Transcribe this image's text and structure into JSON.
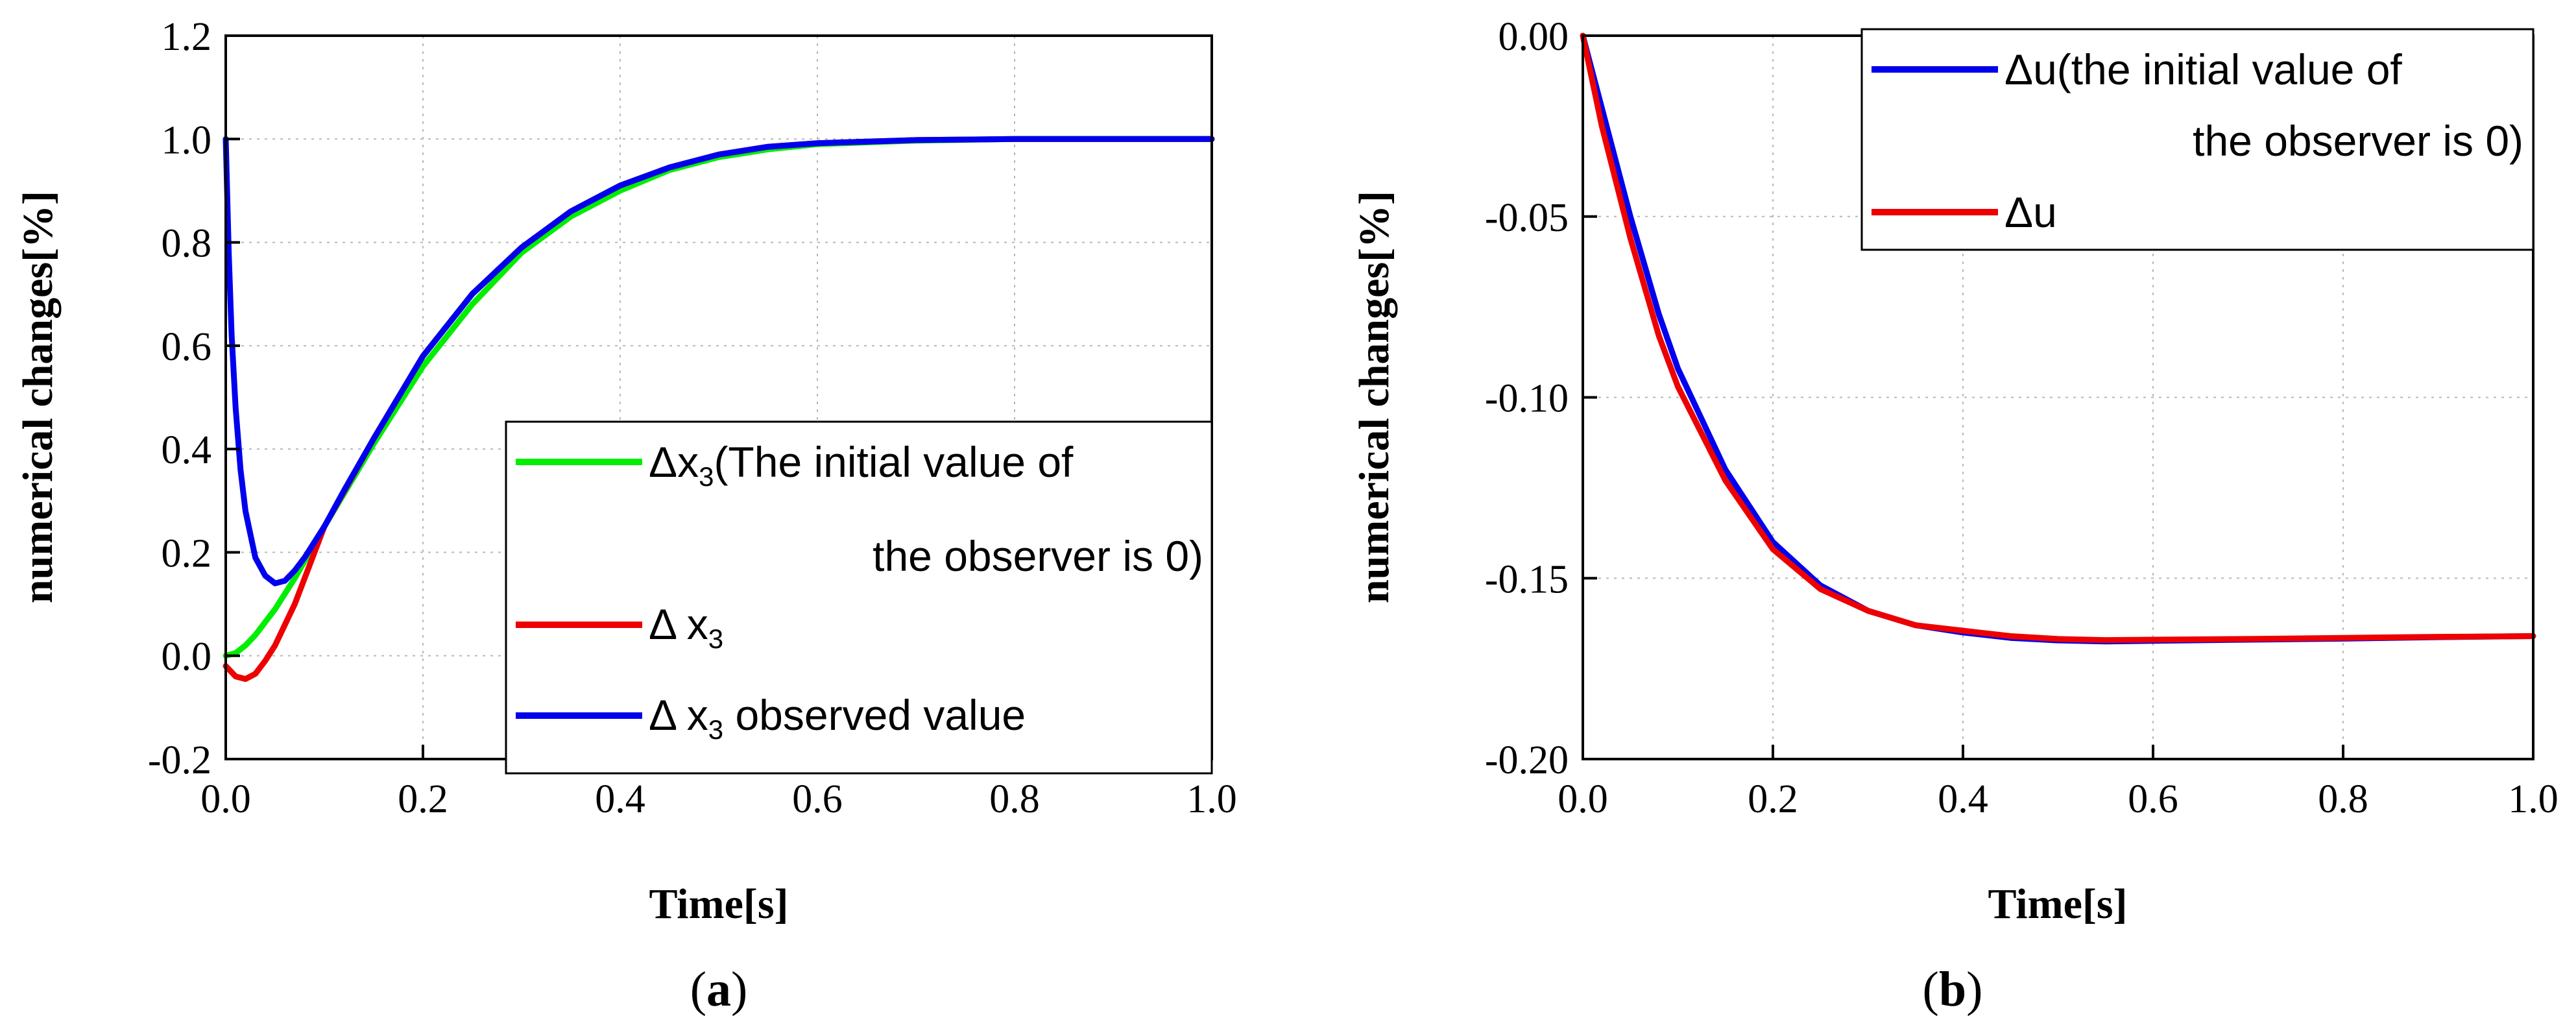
{
  "chart_data": [
    {
      "type": "line",
      "panel_open": "(",
      "panel_letter": "a",
      "panel_close": ")",
      "xlabel": "Time[s]",
      "ylabel": "numerical changes[%]",
      "xlim": [
        0.0,
        1.0
      ],
      "ylim": [
        -0.2,
        1.2
      ],
      "xticks": [
        "0.0",
        "0.2",
        "0.4",
        "0.6",
        "0.8",
        "1.0"
      ],
      "yticks": [
        "-0.2",
        "0.0",
        "0.2",
        "0.4",
        "0.6",
        "0.8",
        "1.0",
        "1.2"
      ],
      "grid": true,
      "legend_position": "right",
      "legend": [
        {
          "color": "#00ee00",
          "line1_pre": "Δx",
          "line1_sub": "3",
          "line1_post": "(The initial value of",
          "line2": "the observer is 0)"
        },
        {
          "color": "#ee0000",
          "pre": "Δ x",
          "sub": "3",
          "post": ""
        },
        {
          "color": "#0000ee",
          "pre": "Δ x",
          "sub": "3",
          "post": " observed value"
        }
      ],
      "series": [
        {
          "name": "Δx3 (The initial value of the observer is 0)",
          "color": "#00ee00",
          "x": [
            0,
            0.01,
            0.02,
            0.03,
            0.05,
            0.07,
            0.1,
            0.15,
            0.2,
            0.25,
            0.3,
            0.35,
            0.4,
            0.45,
            0.5,
            0.55,
            0.6,
            0.7,
            0.8,
            0.9,
            1.0
          ],
          "y": [
            0.0,
            0.005,
            0.02,
            0.04,
            0.09,
            0.15,
            0.25,
            0.41,
            0.56,
            0.68,
            0.78,
            0.85,
            0.9,
            0.94,
            0.965,
            0.98,
            0.99,
            0.997,
            1.0,
            1.0,
            1.0
          ]
        },
        {
          "name": "Δx3",
          "color": "#ee0000",
          "x": [
            0,
            0.005,
            0.01,
            0.02,
            0.03,
            0.04,
            0.05,
            0.07,
            0.1,
            0.15,
            0.2,
            0.25,
            0.3,
            0.35,
            0.4,
            0.45,
            0.5,
            0.55,
            0.6,
            0.7,
            0.8,
            0.9,
            1.0
          ],
          "y": [
            -0.02,
            -0.03,
            -0.04,
            -0.045,
            -0.035,
            -0.01,
            0.02,
            0.1,
            0.25,
            0.42,
            0.58,
            0.7,
            0.79,
            0.86,
            0.91,
            0.945,
            0.97,
            0.985,
            0.992,
            0.998,
            1.0,
            1.0,
            1.0
          ]
        },
        {
          "name": "Δx3 observed value",
          "color": "#0000ee",
          "x": [
            0,
            0.003,
            0.006,
            0.01,
            0.015,
            0.02,
            0.03,
            0.04,
            0.05,
            0.06,
            0.07,
            0.08,
            0.1,
            0.12,
            0.15,
            0.2,
            0.25,
            0.3,
            0.35,
            0.4,
            0.45,
            0.5,
            0.55,
            0.6,
            0.7,
            0.8,
            0.9,
            1.0
          ],
          "y": [
            1.0,
            0.78,
            0.62,
            0.48,
            0.36,
            0.28,
            0.19,
            0.155,
            0.14,
            0.145,
            0.165,
            0.19,
            0.25,
            0.32,
            0.42,
            0.58,
            0.7,
            0.79,
            0.86,
            0.91,
            0.945,
            0.97,
            0.985,
            0.992,
            0.998,
            1.0,
            1.0,
            1.0
          ]
        }
      ]
    },
    {
      "type": "line",
      "panel_open": "(",
      "panel_letter": "b",
      "panel_close": ")",
      "xlabel": "Time[s]",
      "ylabel": "numerical changes[%]",
      "xlim": [
        0.0,
        1.0
      ],
      "ylim": [
        -0.2,
        0.0
      ],
      "xticks": [
        "0.0",
        "0.2",
        "0.4",
        "0.6",
        "0.8",
        "1.0"
      ],
      "yticks": [
        "-0.20",
        "-0.15",
        "-0.10",
        "-0.05",
        "0.00"
      ],
      "grid": true,
      "legend_position": "top-right",
      "legend": [
        {
          "color": "#0000ee",
          "line1_pre": "Δu(the initial value of",
          "line2": "the observer is 0)"
        },
        {
          "color": "#ee0000",
          "pre": "Δu",
          "sub": "",
          "post": ""
        }
      ],
      "series": [
        {
          "name": "Δu (the initial value of the observer is 0)",
          "color": "#0000ee",
          "x": [
            0,
            0.02,
            0.05,
            0.08,
            0.1,
            0.15,
            0.2,
            0.25,
            0.3,
            0.35,
            0.4,
            0.45,
            0.5,
            0.55,
            0.6,
            0.7,
            0.8,
            0.9,
            1.0
          ],
          "y": [
            0.0,
            -0.02,
            -0.05,
            -0.077,
            -0.092,
            -0.12,
            -0.14,
            -0.152,
            -0.159,
            -0.163,
            -0.165,
            -0.1665,
            -0.1672,
            -0.1675,
            -0.1673,
            -0.167,
            -0.1667,
            -0.1663,
            -0.166
          ]
        },
        {
          "name": "Δu",
          "color": "#ee0000",
          "x": [
            0,
            0.02,
            0.05,
            0.08,
            0.1,
            0.15,
            0.2,
            0.25,
            0.3,
            0.35,
            0.4,
            0.45,
            0.5,
            0.55,
            0.6,
            0.7,
            0.8,
            0.9,
            1.0
          ],
          "y": [
            0.0,
            -0.025,
            -0.056,
            -0.083,
            -0.097,
            -0.123,
            -0.142,
            -0.153,
            -0.159,
            -0.163,
            -0.1645,
            -0.166,
            -0.1668,
            -0.1671,
            -0.167,
            -0.1668,
            -0.1665,
            -0.1662,
            -0.166
          ]
        }
      ]
    }
  ]
}
